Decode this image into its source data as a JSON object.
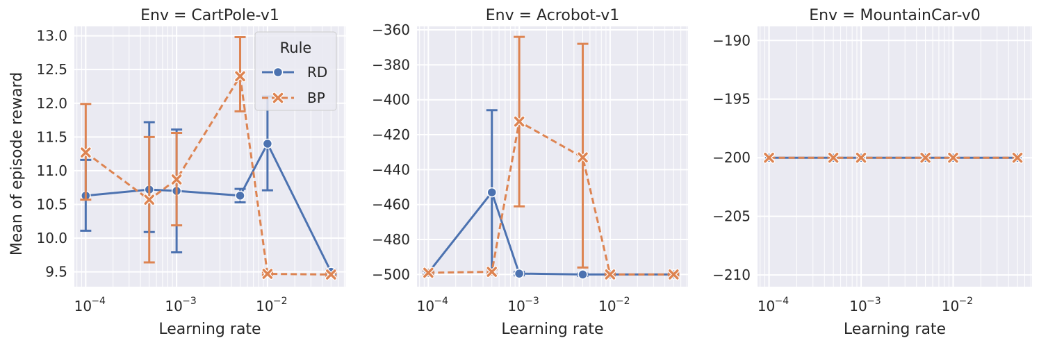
{
  "colors": {
    "background": "#ffffff",
    "axes_face": "#eaeaf2",
    "grid": "#ffffff",
    "text": "#262626",
    "RD": "#4c72b0",
    "BP": "#dd8452"
  },
  "legend": {
    "title": "Rule",
    "placement": "top-right of first panel",
    "entries": [
      {
        "name": "RD",
        "marker": "circle",
        "line": "solid"
      },
      {
        "name": "BP",
        "marker": "x",
        "line": "dashed"
      }
    ]
  },
  "ylabel": "Mean of episode reward",
  "chart_data": [
    {
      "type": "line",
      "title": "Env = CartPole-v1",
      "xlabel": "Learning rate",
      "ylabel": "Mean of episode reward",
      "xscale": "log",
      "xlim": [
        7.5e-05,
        0.072
      ],
      "ylim": [
        9.28,
        13.14
      ],
      "x_ticks": [
        0.0001,
        0.001,
        0.01
      ],
      "x_tick_labels": [
        "10",
        "10",
        "10"
      ],
      "x_tick_exponents": [
        "−4",
        "−3",
        "−2"
      ],
      "y_ticks": [
        9.5,
        10.0,
        10.5,
        11.0,
        11.5,
        12.0,
        12.5,
        13.0
      ],
      "y_tick_labels": [
        "9.5",
        "10.0",
        "10.5",
        "11.0",
        "11.5",
        "12.0",
        "12.5",
        "13.0"
      ],
      "grid": true,
      "series": [
        {
          "name": "RD",
          "x": [
            0.0001,
            0.0005,
            0.001,
            0.005,
            0.01,
            0.05
          ],
          "y": [
            10.63,
            10.72,
            10.7,
            10.63,
            11.4,
            9.5
          ],
          "lo": [
            10.11,
            10.09,
            9.79,
            10.53,
            10.71,
            9.46
          ],
          "hi": [
            11.16,
            11.72,
            11.61,
            10.73,
            12.1,
            9.53
          ]
        },
        {
          "name": "BP",
          "x": [
            0.0001,
            0.0005,
            0.001,
            0.005,
            0.01,
            0.05
          ],
          "y": [
            11.27,
            10.57,
            10.87,
            12.4,
            9.47,
            9.46
          ],
          "lo": [
            10.57,
            9.64,
            10.19,
            11.88,
            9.45,
            9.44
          ],
          "hi": [
            11.99,
            11.5,
            11.56,
            12.98,
            9.49,
            9.48
          ]
        }
      ]
    },
    {
      "type": "line",
      "title": "Env = Acrobot-v1",
      "xlabel": "Learning rate",
      "xscale": "log",
      "xlim": [
        7.5e-05,
        0.072
      ],
      "ylim": [
        -507,
        -358
      ],
      "x_ticks": [
        0.0001,
        0.001,
        0.01
      ],
      "x_tick_labels": [
        "10",
        "10",
        "10"
      ],
      "x_tick_exponents": [
        "−4",
        "−3",
        "−2"
      ],
      "y_ticks": [
        -500,
        -480,
        -460,
        -440,
        -420,
        -400,
        -380,
        -360
      ],
      "y_tick_labels": [
        "−500",
        "−480",
        "−460",
        "−440",
        "−420",
        "−400",
        "−380",
        "−360"
      ],
      "grid": true,
      "series": [
        {
          "name": "RD",
          "x": [
            0.0001,
            0.0005,
            0.001,
            0.005,
            0.01,
            0.05
          ],
          "y": [
            -499,
            -453,
            -499.5,
            -500,
            -500,
            -500
          ],
          "lo": [
            -500,
            -500,
            -500.5,
            -500.8,
            -500.5,
            -500.5
          ],
          "hi": [
            -498,
            -406,
            -498.5,
            -499.5,
            -499.5,
            -499.5
          ]
        },
        {
          "name": "BP",
          "x": [
            0.0001,
            0.0005,
            0.001,
            0.005,
            0.01,
            0.05
          ],
          "y": [
            -499,
            -498.5,
            -412.5,
            -433,
            -500,
            -500
          ],
          "lo": [
            -500.5,
            -500,
            -461,
            -496,
            -500.5,
            -500.5
          ],
          "hi": [
            -497.5,
            -497,
            -364,
            -368,
            -499.5,
            -499.5
          ]
        }
      ]
    },
    {
      "type": "line",
      "title": "Env = MountainCar-v0",
      "xlabel": "Learning rate",
      "xscale": "log",
      "xlim": [
        7.5e-05,
        0.072
      ],
      "ylim": [
        -211,
        -188.8
      ],
      "x_ticks": [
        0.0001,
        0.001,
        0.01
      ],
      "x_tick_labels": [
        "10",
        "10",
        "10"
      ],
      "x_tick_exponents": [
        "−4",
        "−3",
        "−2"
      ],
      "y_ticks": [
        -210,
        -205,
        -200,
        -195,
        -190
      ],
      "y_tick_labels": [
        "−210",
        "−205",
        "−200",
        "−195",
        "−190"
      ],
      "grid": true,
      "series": [
        {
          "name": "RD",
          "x": [
            0.0001,
            0.0005,
            0.001,
            0.005,
            0.01,
            0.05
          ],
          "y": [
            -200,
            -200,
            -200,
            -200,
            -200,
            -200
          ]
        },
        {
          "name": "BP",
          "x": [
            0.0001,
            0.0005,
            0.001,
            0.005,
            0.01,
            0.05
          ],
          "y": [
            -200,
            -200,
            -200,
            -200,
            -200,
            -200
          ]
        }
      ]
    }
  ]
}
